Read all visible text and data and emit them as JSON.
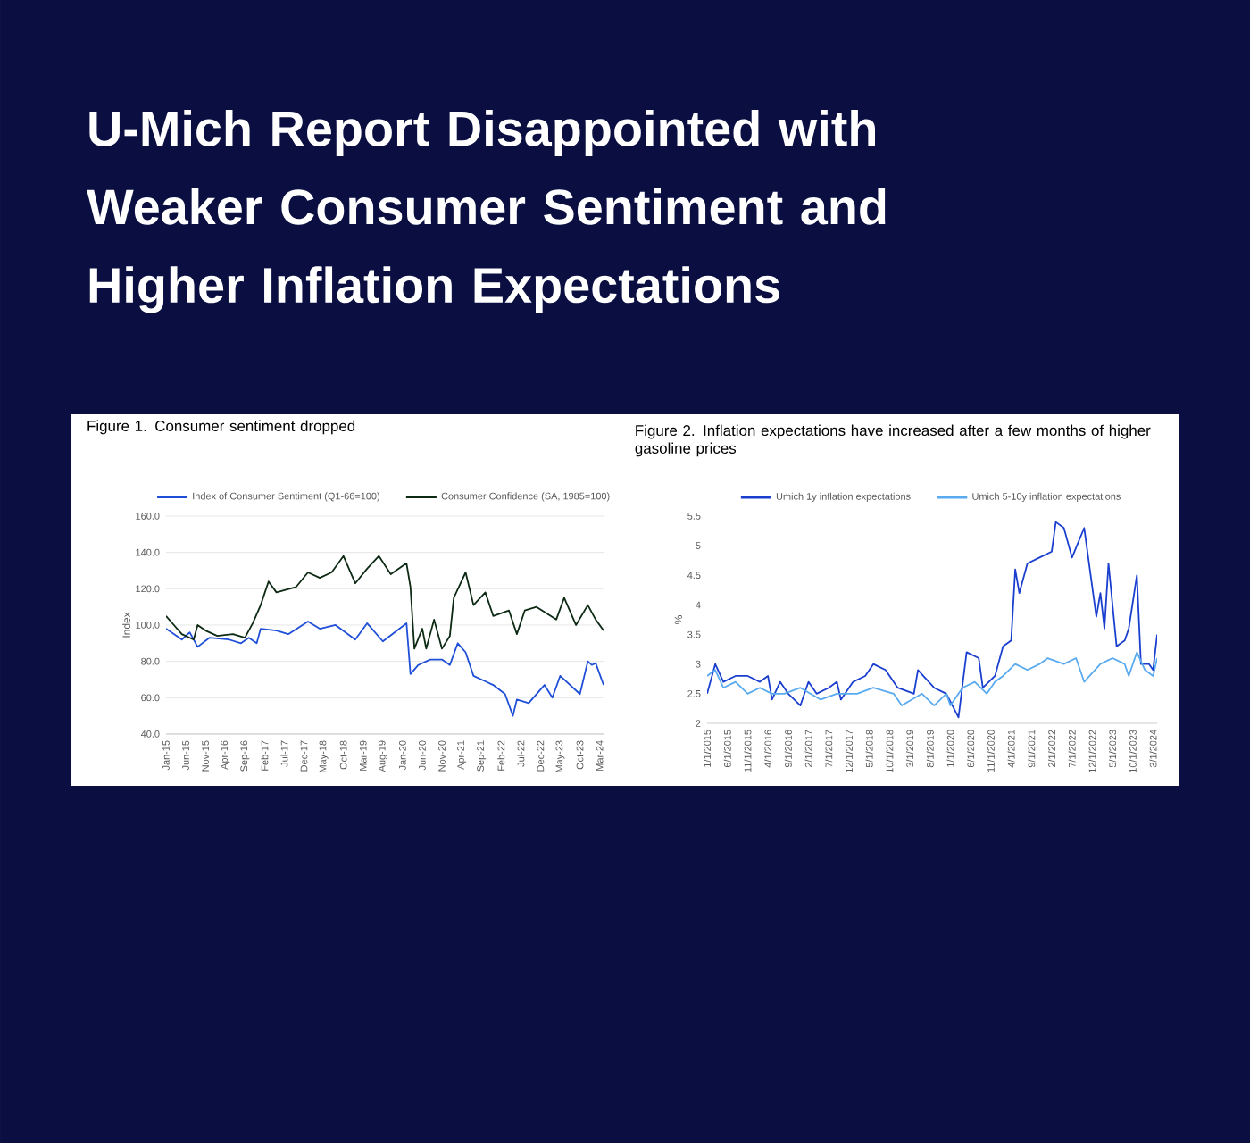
{
  "chart_data": [
    {
      "type": "other",
      "title": "U-Mich Report Disappointed with Weaker Consumer Sentiment and Higher Inflation Expectations"
    },
    {
      "type": "line",
      "title": "Figure 1. Consumer sentiment dropped",
      "ylabel": "Index",
      "grid": "y",
      "legend": "top",
      "xlim": [
        "2015-01",
        "2024-04"
      ],
      "ylim": [
        40,
        160
      ],
      "yticks": [
        {
          "value": 40,
          "label": "40.0"
        },
        {
          "value": 60,
          "label": "60.0"
        },
        {
          "value": 80,
          "label": "80.0"
        },
        {
          "value": 100,
          "label": "100.0"
        },
        {
          "value": 120,
          "label": "120.0"
        },
        {
          "value": 140,
          "label": "140.0"
        },
        {
          "value": 160,
          "label": "160.0"
        }
      ],
      "xticks": [
        {
          "value": "2015-01",
          "label": "Jan-15"
        },
        {
          "value": "2015-06",
          "label": "Jun-15"
        },
        {
          "value": "2015-11",
          "label": "Nov-15"
        },
        {
          "value": "2016-04",
          "label": "Apr-16"
        },
        {
          "value": "2016-09",
          "label": "Sep-16"
        },
        {
          "value": "2017-02",
          "label": "Feb-17"
        },
        {
          "value": "2017-07",
          "label": "Jul-17"
        },
        {
          "value": "2017-12",
          "label": "Dec-17"
        },
        {
          "value": "2018-05",
          "label": "May-18"
        },
        {
          "value": "2018-10",
          "label": "Oct-18"
        },
        {
          "value": "2019-03",
          "label": "Mar-19"
        },
        {
          "value": "2019-08",
          "label": "Aug-19"
        },
        {
          "value": "2020-01",
          "label": "Jan-20"
        },
        {
          "value": "2020-06",
          "label": "Jun-20"
        },
        {
          "value": "2020-11",
          "label": "Nov-20"
        },
        {
          "value": "2021-04",
          "label": "Apr-21"
        },
        {
          "value": "2021-09",
          "label": "Sep-21"
        },
        {
          "value": "2022-02",
          "label": "Feb-22"
        },
        {
          "value": "2022-07",
          "label": "Jul-22"
        },
        {
          "value": "2022-12",
          "label": "Dec-22"
        },
        {
          "value": "2023-05",
          "label": "May-23"
        },
        {
          "value": "2023-10",
          "label": "Oct-23"
        },
        {
          "value": "2024-03",
          "label": "Mar-24"
        }
      ],
      "series": [
        {
          "name": "Index of Consumer Sentiment (Q1-66=100)",
          "color": "#1f4fd8",
          "x": [
            "2015-01",
            "2015-03",
            "2015-05",
            "2015-07",
            "2015-09",
            "2015-12",
            "2016-05",
            "2016-08",
            "2016-10",
            "2016-12",
            "2017-01",
            "2017-05",
            "2017-08",
            "2018-01",
            "2018-04",
            "2018-08",
            "2019-01",
            "2019-04",
            "2019-08",
            "2020-02",
            "2020-03",
            "2020-05",
            "2020-08",
            "2020-11",
            "2021-01",
            "2021-03",
            "2021-05",
            "2021-07",
            "2021-10",
            "2021-12",
            "2022-03",
            "2022-05",
            "2022-06",
            "2022-09",
            "2023-01",
            "2023-03",
            "2023-05",
            "2023-10",
            "2023-12",
            "2024-01",
            "2024-02",
            "2024-04"
          ],
          "values": [
            98,
            95,
            92,
            96,
            88,
            93,
            92,
            90,
            93,
            90,
            98,
            97,
            95,
            102,
            98,
            100,
            92,
            101,
            91,
            101,
            73,
            78,
            81,
            81,
            78,
            90,
            85,
            72,
            69,
            67,
            62,
            50,
            59,
            57,
            67,
            60,
            72,
            62,
            80,
            78,
            79,
            67
          ]
        },
        {
          "name": "Consumer Confidence (SA, 1985=100)",
          "color": "#0d2a14",
          "x": [
            "2015-01",
            "2015-03",
            "2015-05",
            "2015-08",
            "2015-09",
            "2015-11",
            "2016-02",
            "2016-06",
            "2016-09",
            "2016-11",
            "2017-01",
            "2017-03",
            "2017-05",
            "2017-10",
            "2018-01",
            "2018-04",
            "2018-07",
            "2018-10",
            "2019-01",
            "2019-04",
            "2019-07",
            "2019-10",
            "2020-02",
            "2020-03",
            "2020-04",
            "2020-06",
            "2020-07",
            "2020-09",
            "2020-11",
            "2021-01",
            "2021-02",
            "2021-05",
            "2021-07",
            "2021-10",
            "2021-12",
            "2022-04",
            "2022-06",
            "2022-08",
            "2022-11",
            "2023-04",
            "2023-06",
            "2023-09",
            "2023-12",
            "2024-02",
            "2024-04"
          ],
          "values": [
            105,
            100,
            95,
            92,
            100,
            97,
            94,
            95,
            93,
            101,
            111,
            124,
            118,
            121,
            129,
            126,
            129,
            138,
            123,
            131,
            138,
            128,
            134,
            121,
            87,
            98,
            87,
            103,
            87,
            94,
            115,
            129,
            111,
            118,
            105,
            108,
            95,
            108,
            110,
            103,
            115,
            100,
            111,
            103,
            97
          ]
        }
      ]
    },
    {
      "type": "line",
      "title": "Figure 2. Inflation expectations have increased after a few months of higher gasoline prices",
      "ylabel": "%",
      "legend": "top",
      "xlim": [
        "2015-01",
        "2024-04"
      ],
      "ylim": [
        2,
        5.5
      ],
      "yticks": [
        2,
        2.5,
        3,
        3.5,
        4,
        4.5,
        5,
        5.5
      ],
      "xticks": [
        {
          "value": "2015-01",
          "label": "1/1/2015"
        },
        {
          "value": "2015-06",
          "label": "6/1/2015"
        },
        {
          "value": "2015-11",
          "label": "11/1/2015"
        },
        {
          "value": "2016-04",
          "label": "4/1/2016"
        },
        {
          "value": "2016-09",
          "label": "9/1/2016"
        },
        {
          "value": "2017-02",
          "label": "2/1/2017"
        },
        {
          "value": "2017-07",
          "label": "7/1/2017"
        },
        {
          "value": "2017-12",
          "label": "12/1/2017"
        },
        {
          "value": "2018-05",
          "label": "5/1/2018"
        },
        {
          "value": "2018-10",
          "label": "10/1/2018"
        },
        {
          "value": "2019-03",
          "label": "3/1/2019"
        },
        {
          "value": "2019-08",
          "label": "8/1/2019"
        },
        {
          "value": "2020-01",
          "label": "1/1/2020"
        },
        {
          "value": "2020-06",
          "label": "6/1/2020"
        },
        {
          "value": "2020-11",
          "label": "11/1/2020"
        },
        {
          "value": "2021-04",
          "label": "4/1/2021"
        },
        {
          "value": "2021-09",
          "label": "9/1/2021"
        },
        {
          "value": "2022-02",
          "label": "2/1/2022"
        },
        {
          "value": "2022-07",
          "label": "7/1/2022"
        },
        {
          "value": "2022-12",
          "label": "12/1/2022"
        },
        {
          "value": "2023-05",
          "label": "5/1/2023"
        },
        {
          "value": "2023-10",
          "label": "10/1/2023"
        },
        {
          "value": "2024-03",
          "label": "3/1/2024"
        }
      ],
      "series": [
        {
          "name": "Umich 1y inflation expectations",
          "color": "#1a3fcf",
          "x": [
            "2015-01",
            "2015-03",
            "2015-05",
            "2015-08",
            "2015-11",
            "2016-02",
            "2016-04",
            "2016-05",
            "2016-07",
            "2016-09",
            "2016-12",
            "2017-02",
            "2017-04",
            "2017-07",
            "2017-09",
            "2017-10",
            "2018-01",
            "2018-04",
            "2018-06",
            "2018-09",
            "2018-12",
            "2019-04",
            "2019-05",
            "2019-09",
            "2019-12",
            "2020-03",
            "2020-05",
            "2020-08",
            "2020-09",
            "2020-12",
            "2021-02",
            "2021-04",
            "2021-05",
            "2021-06",
            "2021-08",
            "2021-11",
            "2022-02",
            "2022-03",
            "2022-05",
            "2022-07",
            "2022-10",
            "2023-01",
            "2023-02",
            "2023-03",
            "2023-04",
            "2023-06",
            "2023-08",
            "2023-09",
            "2023-11",
            "2023-12",
            "2024-02",
            "2024-03",
            "2024-04"
          ],
          "values": [
            2.5,
            3.0,
            2.7,
            2.8,
            2.8,
            2.7,
            2.8,
            2.4,
            2.7,
            2.5,
            2.3,
            2.7,
            2.5,
            2.6,
            2.7,
            2.4,
            2.7,
            2.8,
            3.0,
            2.9,
            2.6,
            2.5,
            2.9,
            2.6,
            2.5,
            2.1,
            3.2,
            3.1,
            2.6,
            2.8,
            3.3,
            3.4,
            4.6,
            4.2,
            4.7,
            4.8,
            4.9,
            5.4,
            5.3,
            4.8,
            5.3,
            3.8,
            4.2,
            3.6,
            4.7,
            3.3,
            3.4,
            3.6,
            4.5,
            3.0,
            3.0,
            2.9,
            3.5
          ]
        },
        {
          "name": "Umich 5-10y inflation expectations",
          "color": "#5aaaf0",
          "x": [
            "2015-01",
            "2015-03",
            "2015-05",
            "2015-08",
            "2015-11",
            "2016-02",
            "2016-05",
            "2016-08",
            "2016-12",
            "2017-05",
            "2017-09",
            "2018-02",
            "2018-06",
            "2018-11",
            "2019-01",
            "2019-06",
            "2019-09",
            "2019-12",
            "2020-01",
            "2020-04",
            "2020-07",
            "2020-10",
            "2020-12",
            "2021-02",
            "2021-05",
            "2021-08",
            "2021-11",
            "2022-01",
            "2022-05",
            "2022-08",
            "2022-10",
            "2023-02",
            "2023-05",
            "2023-08",
            "2023-09",
            "2023-11",
            "2024-01",
            "2024-03",
            "2024-04"
          ],
          "values": [
            2.8,
            2.9,
            2.6,
            2.7,
            2.5,
            2.6,
            2.5,
            2.5,
            2.6,
            2.4,
            2.5,
            2.5,
            2.6,
            2.5,
            2.3,
            2.5,
            2.3,
            2.5,
            2.3,
            2.6,
            2.7,
            2.5,
            2.7,
            2.8,
            3.0,
            2.9,
            3.0,
            3.1,
            3.0,
            3.1,
            2.7,
            3.0,
            3.1,
            3.0,
            2.8,
            3.2,
            2.9,
            2.8,
            3.1
          ]
        }
      ]
    }
  ]
}
